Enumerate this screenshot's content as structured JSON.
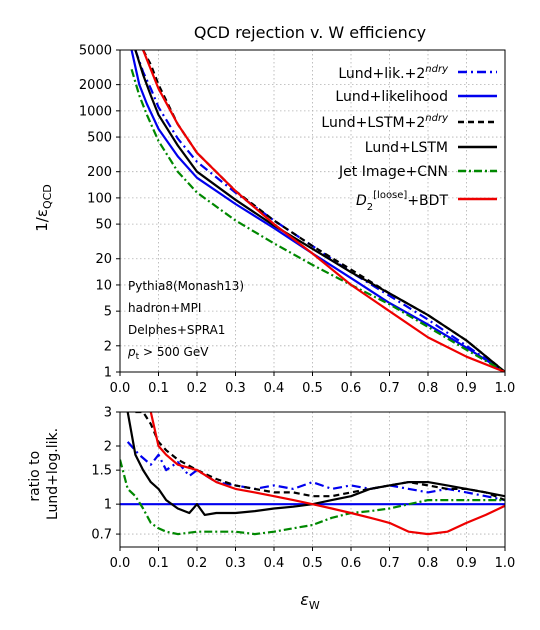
{
  "chart_data": [
    {
      "type": "line",
      "title": "QCD rejection v. W efficiency",
      "xlabel": "",
      "ylabel": "1/ε_QCD",
      "ylabel_main": "1/ε",
      "ylabel_sub": "QCD",
      "yscale": "log",
      "xlim": [
        0,
        1
      ],
      "ylim": [
        1,
        5000
      ],
      "grid": true,
      "legend_position": "top-right",
      "x_ticks": [
        "0.0",
        "0.1",
        "0.2",
        "0.3",
        "0.4",
        "0.5",
        "0.6",
        "0.7",
        "0.8",
        "0.9",
        "1.0"
      ],
      "y_ticks": [
        {
          "value": 1,
          "label": "1"
        },
        {
          "value": 2,
          "label": "2"
        },
        {
          "value": 5,
          "label": "5"
        },
        {
          "value": 10,
          "label": "10"
        },
        {
          "value": 20,
          "label": "20"
        },
        {
          "value": 50,
          "label": "50"
        },
        {
          "value": 100,
          "label": "100"
        },
        {
          "value": 200,
          "label": "200"
        },
        {
          "value": 500,
          "label": "500"
        },
        {
          "value": 1000,
          "label": "1000"
        },
        {
          "value": 2000,
          "label": "2000"
        },
        {
          "value": 5000,
          "label": "5000"
        }
      ],
      "annotation_lines": [
        "Pythia8(Monash13)",
        "hadron+MPI",
        "Delphes+SPRA1",
        "p_t > 500 GeV"
      ],
      "series": [
        {
          "name": "Lund+lik.+2^ndry",
          "legend_main": "Lund+lik.+2",
          "legend_sup": "ndry",
          "color": "#0000ee",
          "dash": "9,4,2,4",
          "x": [
            0.04,
            0.06,
            0.08,
            0.1,
            0.15,
            0.2,
            0.3,
            0.4,
            0.5,
            0.6,
            0.7,
            0.8,
            0.9,
            1.0
          ],
          "y": [
            5000,
            2800,
            1800,
            1100,
            480,
            260,
            115,
            55,
            28,
            14,
            7.5,
            4,
            2,
            1
          ]
        },
        {
          "name": "Lund+likelihood",
          "legend_main": "Lund+likelihood",
          "legend_sup": "",
          "color": "#0000ee",
          "dash": "",
          "x": [
            0.03,
            0.05,
            0.07,
            0.1,
            0.15,
            0.2,
            0.3,
            0.4,
            0.5,
            0.6,
            0.7,
            0.8,
            0.9,
            1.0
          ],
          "y": [
            5000,
            2000,
            1200,
            620,
            300,
            170,
            85,
            45,
            23,
            12,
            6.2,
            3.5,
            1.9,
            1
          ]
        },
        {
          "name": "Lund+LSTM+2^ndry",
          "legend_main": "Lund+LSTM+2",
          "legend_sup": "ndry",
          "color": "#000000",
          "dash": "6,4",
          "x": [
            0.06,
            0.08,
            0.1,
            0.15,
            0.2,
            0.3,
            0.4,
            0.5,
            0.6,
            0.7,
            0.8,
            0.9,
            1.0
          ],
          "y": [
            5000,
            3400,
            2000,
            700,
            330,
            120,
            55,
            28,
            15,
            8,
            4.5,
            2.3,
            1
          ]
        },
        {
          "name": "Lund+LSTM",
          "legend_main": "Lund+LSTM",
          "legend_sup": "",
          "color": "#000000",
          "dash": "",
          "x": [
            0.04,
            0.06,
            0.08,
            0.1,
            0.15,
            0.2,
            0.3,
            0.4,
            0.5,
            0.6,
            0.7,
            0.8,
            0.9,
            1.0
          ],
          "y": [
            5000,
            2600,
            1500,
            900,
            400,
            200,
            95,
            48,
            26,
            14,
            8,
            4.5,
            2.3,
            1
          ]
        },
        {
          "name": "Jet Image+CNN",
          "legend_main": "Jet Image+CNN",
          "legend_sup": "",
          "color": "#008800",
          "dash": "8,3,2,3",
          "x": [
            0.03,
            0.05,
            0.07,
            0.1,
            0.15,
            0.2,
            0.3,
            0.4,
            0.5,
            0.6,
            0.7,
            0.8,
            0.9,
            1.0
          ],
          "y": [
            3000,
            1500,
            900,
            450,
            200,
            115,
            55,
            30,
            17,
            10,
            6,
            3.3,
            1.8,
            1
          ]
        },
        {
          "name": "D2^[loose]+BDT",
          "legend_main": "D",
          "legend_sub": "2",
          "legend_sup": "[loose]",
          "legend_tail": "+BDT",
          "color": "#ee0000",
          "dash": "",
          "x": [
            0.06,
            0.08,
            0.1,
            0.15,
            0.2,
            0.3,
            0.4,
            0.5,
            0.6,
            0.7,
            0.8,
            0.9,
            1.0
          ],
          "y": [
            5000,
            3000,
            1800,
            700,
            330,
            120,
            50,
            23,
            10,
            5,
            2.5,
            1.5,
            1
          ]
        }
      ]
    },
    {
      "type": "line",
      "xlabel": "ε_W",
      "xlabel_main": "ε",
      "xlabel_sub": "W",
      "ylabel": "ratio to\nLund+log.lik.",
      "ylabel_lines": [
        "ratio to",
        "Lund+log.lik."
      ],
      "yscale": "log",
      "xlim": [
        0,
        1
      ],
      "ylim": [
        0.6,
        3
      ],
      "grid": true,
      "x_ticks": [
        "0.0",
        "0.1",
        "0.2",
        "0.3",
        "0.4",
        "0.5",
        "0.6",
        "0.7",
        "0.8",
        "0.9",
        "1.0"
      ],
      "y_ticks": [
        {
          "value": 0.7,
          "label": "0.7"
        },
        {
          "value": 1,
          "label": "1"
        },
        {
          "value": 1.5,
          "label": "1.5"
        },
        {
          "value": 2,
          "label": "2"
        },
        {
          "value": 3,
          "label": "3"
        }
      ],
      "series": [
        {
          "name": "Lund+lik.+2^ndry",
          "color": "#0000ee",
          "dash": "9,4,2,4",
          "x": [
            0.02,
            0.05,
            0.08,
            0.1,
            0.12,
            0.15,
            0.18,
            0.2,
            0.25,
            0.3,
            0.35,
            0.4,
            0.45,
            0.5,
            0.55,
            0.6,
            0.65,
            0.7,
            0.75,
            0.8,
            0.85,
            0.9,
            0.95,
            1.0
          ],
          "y": [
            2.1,
            1.8,
            1.6,
            1.8,
            1.5,
            1.65,
            1.4,
            1.5,
            1.3,
            1.25,
            1.2,
            1.25,
            1.2,
            1.3,
            1.2,
            1.25,
            1.2,
            1.25,
            1.2,
            1.15,
            1.2,
            1.15,
            1.1,
            1.05
          ]
        },
        {
          "name": "Lund+likelihood",
          "color": "#0000ee",
          "dash": "",
          "x": [
            0.0,
            1.0
          ],
          "y": [
            1.0,
            1.0
          ]
        },
        {
          "name": "Lund+LSTM+2^ndry",
          "color": "#000000",
          "dash": "6,4",
          "x": [
            0.04,
            0.06,
            0.08,
            0.1,
            0.12,
            0.15,
            0.2,
            0.25,
            0.3,
            0.35,
            0.4,
            0.45,
            0.5,
            0.55,
            0.6,
            0.65,
            0.7,
            0.75,
            0.8,
            0.85,
            0.9,
            0.95,
            1.0
          ],
          "y": [
            3.0,
            3.0,
            2.6,
            2.1,
            1.9,
            1.7,
            1.5,
            1.35,
            1.25,
            1.2,
            1.15,
            1.15,
            1.1,
            1.1,
            1.15,
            1.2,
            1.25,
            1.3,
            1.25,
            1.2,
            1.2,
            1.15,
            1.05
          ]
        },
        {
          "name": "Lund+LSTM",
          "color": "#000000",
          "dash": "",
          "x": [
            0.02,
            0.04,
            0.06,
            0.08,
            0.1,
            0.12,
            0.15,
            0.18,
            0.2,
            0.22,
            0.25,
            0.3,
            0.35,
            0.4,
            0.45,
            0.5,
            0.55,
            0.6,
            0.65,
            0.7,
            0.75,
            0.8,
            0.85,
            0.9,
            0.95,
            1.0
          ],
          "y": [
            3.0,
            1.8,
            1.5,
            1.3,
            1.2,
            1.05,
            0.95,
            0.9,
            1.0,
            0.88,
            0.9,
            0.9,
            0.92,
            0.95,
            0.97,
            1.0,
            1.05,
            1.1,
            1.2,
            1.25,
            1.3,
            1.3,
            1.25,
            1.2,
            1.15,
            1.1
          ]
        },
        {
          "name": "Jet Image+CNN",
          "color": "#008800",
          "dash": "8,3,2,3",
          "x": [
            0.0,
            0.02,
            0.04,
            0.06,
            0.08,
            0.1,
            0.12,
            0.15,
            0.2,
            0.25,
            0.3,
            0.35,
            0.4,
            0.45,
            0.5,
            0.55,
            0.6,
            0.65,
            0.7,
            0.75,
            0.8,
            0.85,
            0.9,
            0.95,
            1.0
          ],
          "y": [
            1.7,
            1.2,
            1.1,
            0.95,
            0.8,
            0.75,
            0.72,
            0.7,
            0.72,
            0.72,
            0.72,
            0.7,
            0.72,
            0.75,
            0.78,
            0.85,
            0.9,
            0.92,
            0.95,
            1.0,
            1.05,
            1.05,
            1.05,
            1.05,
            1.05
          ]
        },
        {
          "name": "D2^[loose]+BDT",
          "color": "#ee0000",
          "dash": "",
          "x": [
            0.08,
            0.1,
            0.12,
            0.15,
            0.2,
            0.25,
            0.3,
            0.35,
            0.4,
            0.45,
            0.5,
            0.55,
            0.6,
            0.65,
            0.7,
            0.75,
            0.8,
            0.85,
            0.9,
            0.95,
            1.0
          ],
          "y": [
            3.0,
            2.0,
            1.8,
            1.6,
            1.5,
            1.3,
            1.2,
            1.15,
            1.1,
            1.05,
            1.0,
            0.95,
            0.9,
            0.85,
            0.8,
            0.72,
            0.7,
            0.72,
            0.8,
            0.88,
            0.98
          ]
        }
      ]
    }
  ]
}
